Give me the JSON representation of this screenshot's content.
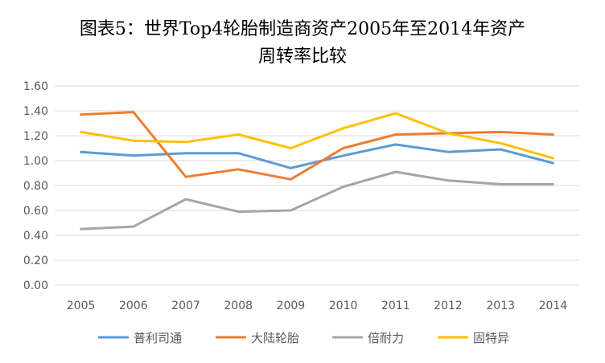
{
  "chart_data": {
    "type": "line",
    "title_lines": [
      "图表5：世界Top4轮胎制造商资产2005年至2014年资产",
      "周转率比较"
    ],
    "x": [
      "2005",
      "2006",
      "2007",
      "2008",
      "2009",
      "2010",
      "2011",
      "2012",
      "2013",
      "2014"
    ],
    "y_ticks": [
      "0.00",
      "0.20",
      "0.40",
      "0.60",
      "0.80",
      "1.00",
      "1.20",
      "1.40",
      "1.60"
    ],
    "ylim": [
      0,
      1.6
    ],
    "grid": true,
    "legend": "bottom",
    "series": [
      {
        "name": "普利司通",
        "color": "#5B9BD5",
        "values": [
          1.07,
          1.04,
          1.06,
          1.06,
          0.94,
          1.04,
          1.13,
          1.07,
          1.09,
          0.98
        ]
      },
      {
        "name": "大陆轮胎",
        "color": "#ED7D31",
        "values": [
          1.37,
          1.39,
          0.87,
          0.93,
          0.85,
          1.1,
          1.21,
          1.22,
          1.23,
          1.21
        ]
      },
      {
        "name": "倍耐力",
        "color": "#A5A5A5",
        "values": [
          0.45,
          0.47,
          0.69,
          0.59,
          0.6,
          0.79,
          0.91,
          0.84,
          0.81,
          0.81
        ]
      },
      {
        "name": "固特异",
        "color": "#FFC000",
        "values": [
          1.23,
          1.16,
          1.15,
          1.21,
          1.1,
          1.26,
          1.38,
          1.22,
          1.14,
          1.02
        ]
      }
    ]
  }
}
